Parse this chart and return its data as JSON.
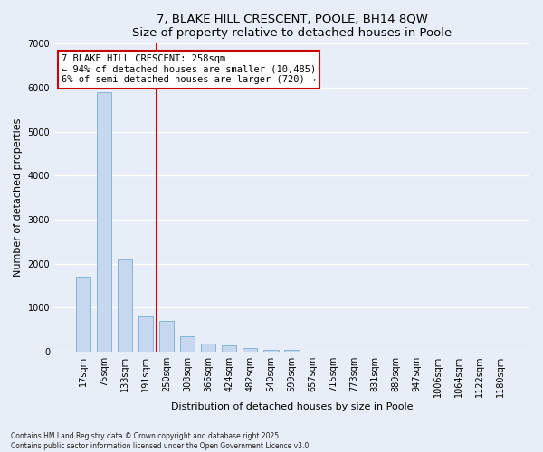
{
  "title": "7, BLAKE HILL CRESCENT, POOLE, BH14 8QW",
  "subtitle": "Size of property relative to detached houses in Poole",
  "xlabel": "Distribution of detached houses by size in Poole",
  "ylabel": "Number of detached properties",
  "categories": [
    "17sqm",
    "75sqm",
    "133sqm",
    "191sqm",
    "250sqm",
    "308sqm",
    "366sqm",
    "424sqm",
    "482sqm",
    "540sqm",
    "599sqm",
    "657sqm",
    "715sqm",
    "773sqm",
    "831sqm",
    "889sqm",
    "947sqm",
    "1006sqm",
    "1064sqm",
    "1122sqm",
    "1180sqm"
  ],
  "values": [
    1700,
    5900,
    2100,
    800,
    700,
    350,
    185,
    150,
    80,
    50,
    50,
    0,
    0,
    0,
    0,
    0,
    0,
    0,
    0,
    0,
    0
  ],
  "bar_color": "#c5d8f0",
  "bar_edge_color": "#7aadd4",
  "red_line_xindex": 4,
  "annotation_line1": "7 BLAKE HILL CRESCENT: 258sqm",
  "annotation_line2": "← 94% of detached houses are smaller (10,485)",
  "annotation_line3": "6% of semi-detached houses are larger (720) →",
  "line_color": "#cc0000",
  "bg_color": "#e8eef8",
  "grid_color": "#ffffff",
  "footnote1": "Contains HM Land Registry data © Crown copyright and database right 2025.",
  "footnote2": "Contains public sector information licensed under the Open Government Licence v3.0.",
  "ylim": [
    0,
    7000
  ],
  "yticks": [
    0,
    1000,
    2000,
    3000,
    4000,
    5000,
    6000,
    7000
  ],
  "title_fontsize": 9.5,
  "axis_label_fontsize": 8,
  "tick_fontsize": 7,
  "annotation_fontsize": 7.5
}
